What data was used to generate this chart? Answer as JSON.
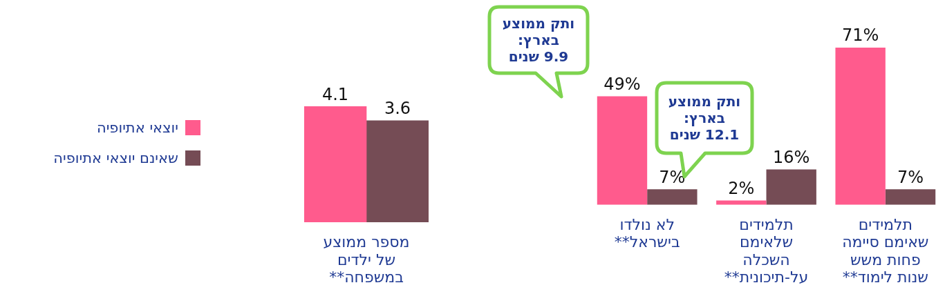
{
  "chart_data": [
    {
      "type": "bar",
      "categories": [
        "מספר ממוצע\nשל ילדים\nבמשפחה**"
      ],
      "series": [
        {
          "name": "יוצאי אתיופיה",
          "color": "#ff5b8d",
          "values": [
            4.1
          ]
        },
        {
          "name": "שאינם יוצאי אתיופיה",
          "color": "#754c55",
          "values": [
            3.6
          ]
        }
      ],
      "data_labels": true,
      "legend": "left",
      "grid": false
    },
    {
      "type": "bar",
      "categories": [
        "לא נולדו\nבישראל**",
        "תלמידים\nשלאימם\nהשכלה\nעל-תיכונית**",
        "תלמידים\nשאימם סיימה\nפחות משש\nשנות לימוד**"
      ],
      "series": [
        {
          "color": "#ff5b8d",
          "values": [
            49,
            2,
            71
          ],
          "value_labels": [
            "49%",
            "2%",
            "71%"
          ]
        },
        {
          "color": "#754c55",
          "values": [
            7,
            16,
            7
          ],
          "value_labels": [
            "7%",
            "16%",
            "7%"
          ]
        }
      ],
      "annotations": [
        "ותק ממוצע\nבארץ:\n9.9 שנים",
        "ותק ממוצע\nבארץ:\n12.1 שנים"
      ],
      "grid": false
    }
  ]
}
